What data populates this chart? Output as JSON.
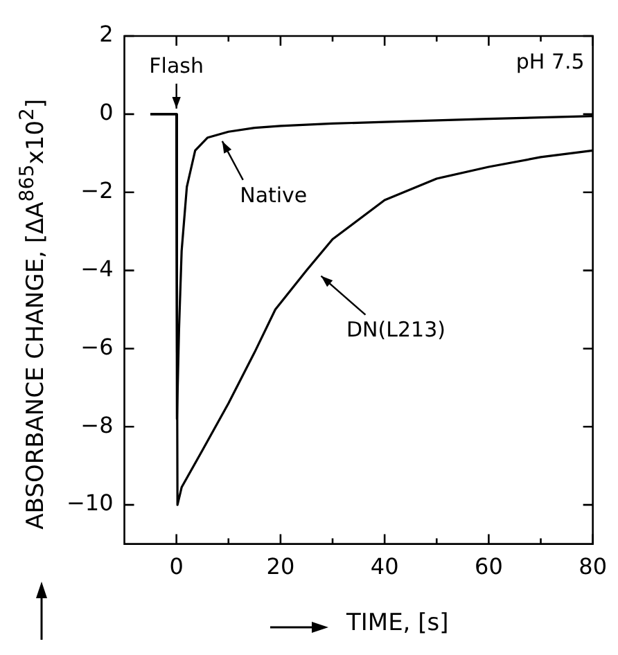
{
  "chart_data": {
    "type": "line",
    "xlabel": "TIME, [s]",
    "ylabel": "ABSORBANCE CHANGE, [ΔA$^{865}$x10$^{2}$]",
    "series": [
      {
        "color": "#000000",
        "x": [
          -5,
          0,
          0.1,
          0.5,
          1,
          2,
          3.6,
          6,
          10,
          15,
          20,
          30,
          40,
          60,
          80
        ],
        "values": [
          0,
          0,
          -7.8,
          -5.5,
          -3.5,
          -1.86,
          -0.93,
          -0.6,
          -0.45,
          -0.35,
          -0.3,
          -0.24,
          -0.2,
          -0.12,
          -0.05
        ]
      },
      {
        "color": "#000000",
        "x": [
          -5,
          0,
          0.2,
          1,
          5,
          10,
          15,
          19,
          25,
          30,
          40,
          50,
          60,
          70,
          80
        ],
        "values": [
          0,
          0,
          -10,
          -9.55,
          -8.6,
          -7.4,
          -6.1,
          -5.0,
          -4.0,
          -3.2,
          -2.2,
          -1.65,
          -1.35,
          -1.1,
          -0.93
        ]
      }
    ],
    "annotations": [
      {
        "text": "Flash",
        "x": 0,
        "y": 0
      },
      {
        "text": "Native",
        "x": 8,
        "y": -0.55
      },
      {
        "text": "DN(L213)",
        "x": 27,
        "y": -4.0
      },
      "pH 7.5"
    ],
    "xlim": [
      -10,
      80
    ],
    "xticks": [
      0,
      {
        "value": 10,
        "label": null
      },
      20,
      {
        "value": 30,
        "label": null
      },
      40,
      {
        "value": 50,
        "label": null
      },
      60,
      {
        "value": 70,
        "label": null
      },
      80
    ],
    "ylim": [
      -11,
      2
    ],
    "yticks": [
      -10,
      -8,
      -6,
      -4,
      -2,
      0,
      2
    ],
    "grid": false,
    "legend": false,
    "marker": "none",
    "line_style": "solid"
  }
}
